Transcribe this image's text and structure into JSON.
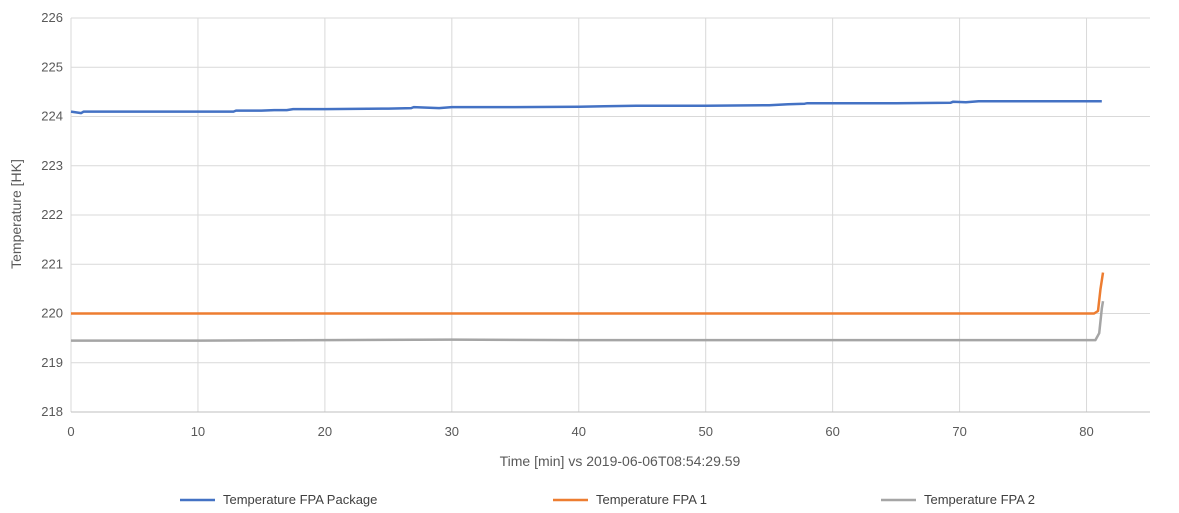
{
  "chart_data": {
    "type": "line",
    "title": "",
    "xlabel": "Time [min] vs   2019-06-06T08:54:29.59",
    "ylabel": "Temperature [HK]",
    "xlim": [
      0,
      85
    ],
    "ylim": [
      218,
      226
    ],
    "x_ticks": [
      0,
      10,
      20,
      30,
      40,
      50,
      60,
      70,
      80
    ],
    "y_ticks": [
      218,
      219,
      220,
      221,
      222,
      223,
      224,
      225,
      226
    ],
    "grid": true,
    "legend_position": "bottom",
    "series": [
      {
        "name": "Temperature FPA Package",
        "color": "#4472C4",
        "x": [
          0,
          0.8,
          1.0,
          5,
          10,
          12.8,
          13.0,
          15,
          16,
          17,
          17.5,
          20,
          25,
          26.8,
          27.0,
          29,
          30,
          35,
          40,
          42,
          45,
          50,
          55,
          56.5,
          57.8,
          58.0,
          60,
          65,
          69.3,
          69.5,
          70.5,
          71.5,
          75,
          80,
          81.2
        ],
        "y": [
          224.1,
          224.07,
          224.1,
          224.1,
          224.1,
          224.1,
          224.12,
          224.12,
          224.13,
          224.13,
          224.15,
          224.15,
          224.16,
          224.17,
          224.19,
          224.17,
          224.19,
          224.19,
          224.2,
          224.21,
          224.22,
          224.22,
          224.23,
          224.25,
          224.26,
          224.27,
          224.27,
          224.27,
          224.28,
          224.3,
          224.29,
          224.31,
          224.31,
          224.31,
          224.31
        ]
      },
      {
        "name": "Temperature FPA 1",
        "color": "#ED7D31",
        "x": [
          0,
          10,
          20,
          30,
          40,
          50,
          60,
          70,
          80,
          80.6,
          80.9,
          81.1,
          81.3
        ],
        "y": [
          220.0,
          220.0,
          220.0,
          220.0,
          220.0,
          220.0,
          220.0,
          220.0,
          220.0,
          220.0,
          220.05,
          220.5,
          220.83
        ]
      },
      {
        "name": "Temperature FPA 2",
        "color": "#A5A5A5",
        "x": [
          0,
          10,
          20,
          30,
          40,
          50,
          60,
          70,
          80,
          80.7,
          81.0,
          81.2,
          81.3
        ],
        "y": [
          219.45,
          219.45,
          219.46,
          219.47,
          219.46,
          219.46,
          219.46,
          219.46,
          219.46,
          219.46,
          219.6,
          220.1,
          220.25
        ]
      }
    ]
  }
}
